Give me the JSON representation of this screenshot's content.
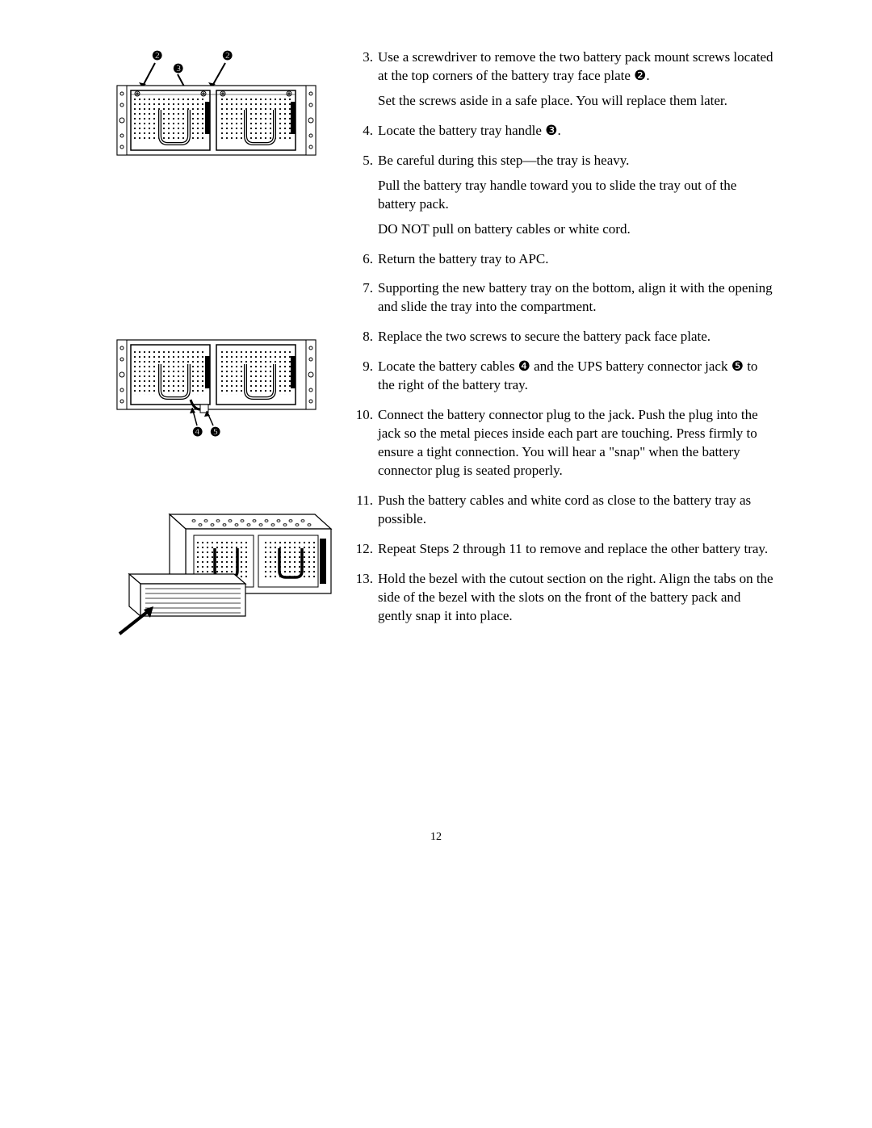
{
  "figures": {
    "fig1": {
      "callouts": {
        "c2a": "❷",
        "c2b": "❷",
        "c3": "❸"
      }
    },
    "fig2": {
      "callouts": {
        "c4": "❹",
        "c5": "❺"
      }
    }
  },
  "steps": [
    {
      "num": "3.",
      "paras": [
        "Use a screwdriver to remove the two battery pack mount screws located at the top corners of the battery tray face plate ❷.",
        "Set the screws aside in a safe place. You will replace them later."
      ]
    },
    {
      "num": "4.",
      "paras": [
        "Locate the battery tray handle ❸."
      ]
    },
    {
      "num": "5.",
      "paras": [
        "Be careful during this step—the tray is heavy.",
        "Pull the battery tray handle toward you to slide the tray out of the battery pack.",
        "DO NOT pull on battery cables or white cord."
      ]
    },
    {
      "num": "6.",
      "paras": [
        "Return the battery tray to APC."
      ]
    },
    {
      "num": "7.",
      "paras": [
        "Supporting the new battery tray on the bottom, align it with the opening and slide the tray into the compartment."
      ]
    },
    {
      "num": "8.",
      "paras": [
        "Replace the two screws to secure the battery pack face plate."
      ]
    },
    {
      "num": "9.",
      "paras": [
        "Locate the battery cables ❹ and the UPS battery connector jack ❺ to the right of the battery tray."
      ]
    },
    {
      "num": "10.",
      "paras": [
        "Connect the battery connector plug to the jack. Push the plug into the jack so the metal pieces inside each part are touching. Press firmly to ensure a tight connection. You will hear a \"snap\" when the battery connector plug is seated properly."
      ]
    },
    {
      "num": "11.",
      "paras": [
        "Push the battery cables and white cord as close to the battery tray as possible."
      ]
    },
    {
      "num": "12.",
      "paras": [
        "Repeat Steps 2 through 11 to remove and replace the other battery tray."
      ]
    },
    {
      "num": "13.",
      "paras": [
        "Hold the bezel with the cutout section on the right. Align the tabs on the side of the bezel with the slots on the front of the battery pack and gently snap it into place."
      ]
    }
  ],
  "pageNumber": "12"
}
